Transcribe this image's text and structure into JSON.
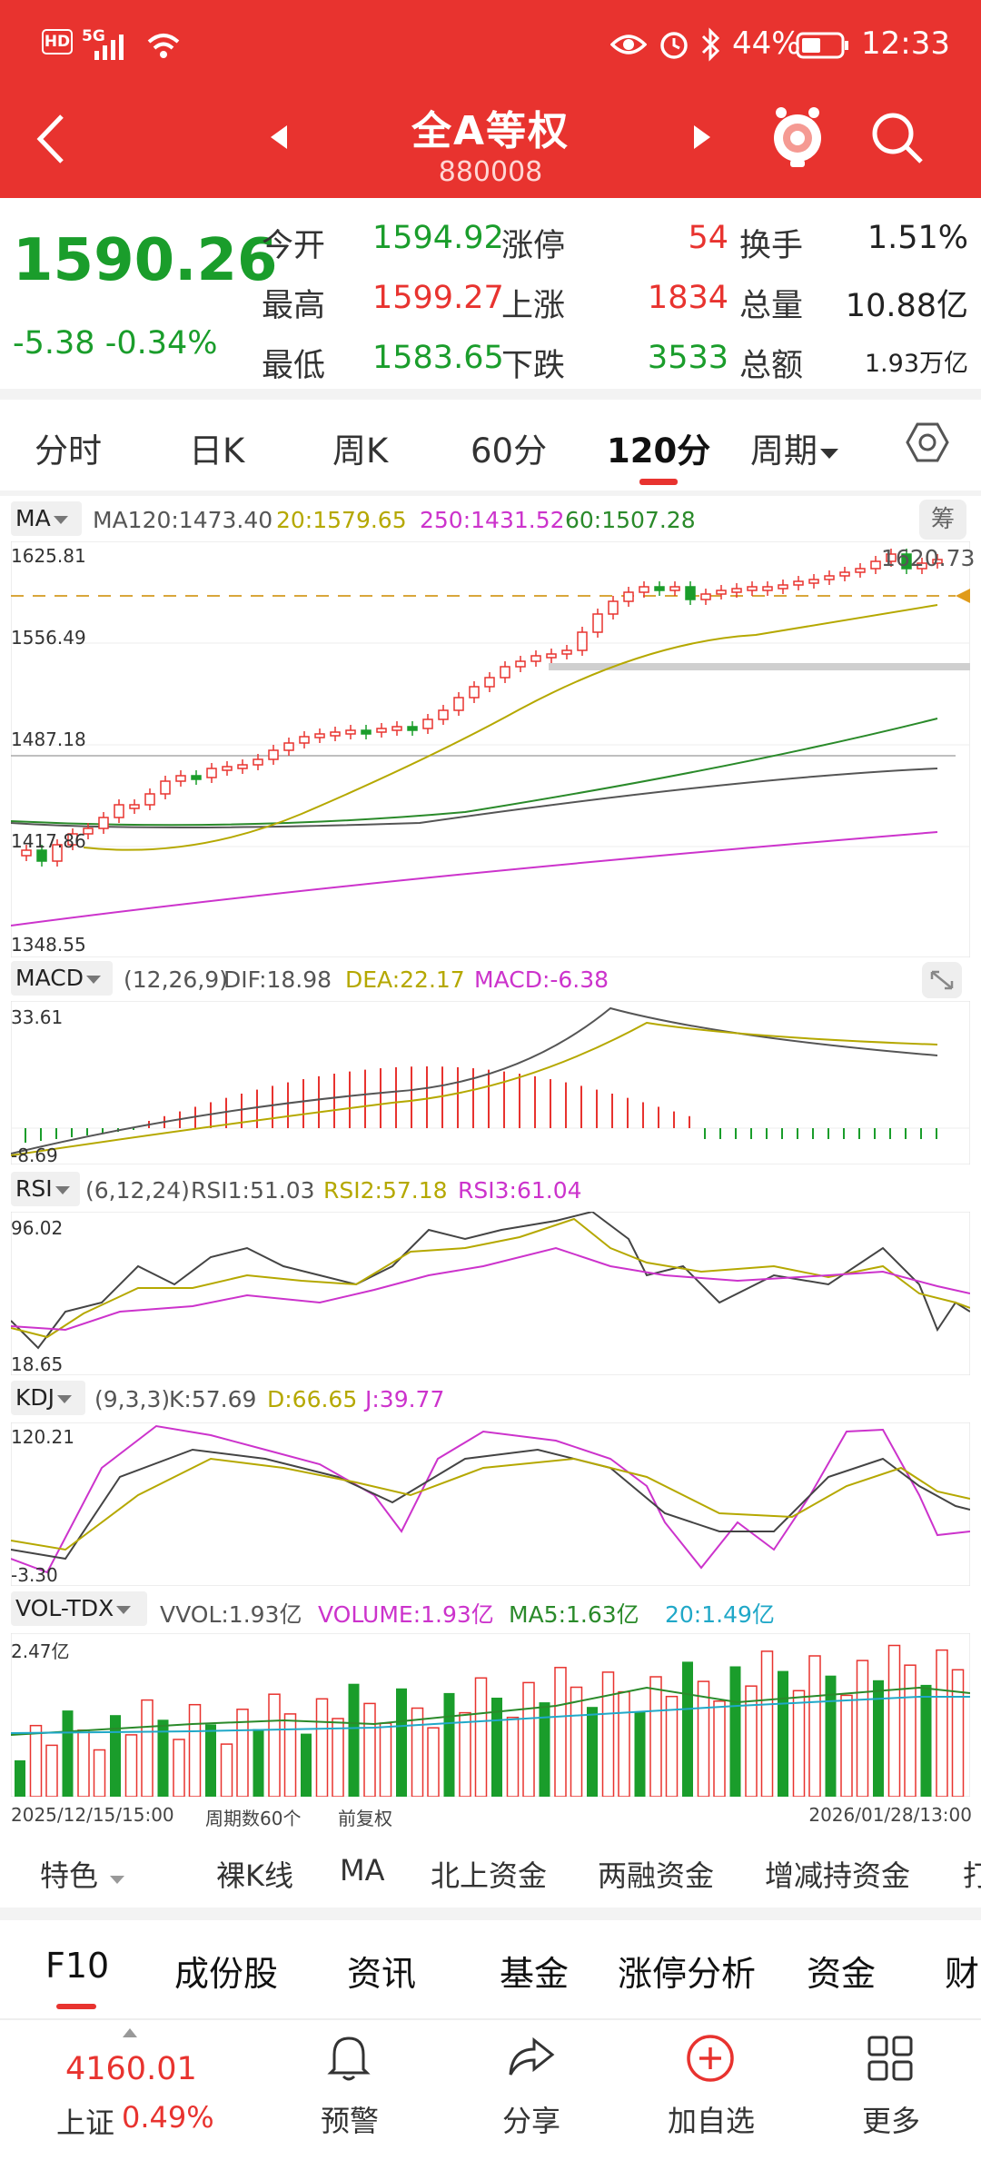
{
  "status": {
    "hd": "HD",
    "net": "5G",
    "battery": "44%",
    "time": "12:33"
  },
  "header": {
    "title": "全A等权",
    "code": "880008"
  },
  "quote": {
    "price": "1590.26",
    "change": "-5.38",
    "change_pct": "-0.34%",
    "rows": [
      {
        "l1": "今开",
        "v1": "1594.92",
        "l2": "涨停",
        "v2": "54",
        "l3": "换手",
        "v3": "1.51%"
      },
      {
        "l1": "最高",
        "v1": "1599.27",
        "l2": "上涨",
        "v2": "1834",
        "l3": "总量",
        "v3": "10.88亿"
      },
      {
        "l1": "最低",
        "v1": "1583.65",
        "l2": "下跌",
        "v2": "3533",
        "l3": "总额",
        "v3": "1.93万亿"
      }
    ]
  },
  "tabs": [
    "分时",
    "日K",
    "周K",
    "60分",
    "120分",
    "周期"
  ],
  "ma": {
    "name": "MA",
    "ma120": "MA120:1473.40",
    "ma20": "20:1579.65",
    "ma250": "250:1431.52",
    "ma60": "60:1507.28",
    "chip": "筹",
    "labels": [
      "1625.81",
      "1556.49",
      "1487.18",
      "1417.86",
      "1348.55"
    ],
    "high": "1620.73"
  },
  "macd": {
    "name": "MACD",
    "params": "(12,26,9)",
    "dif": "DIF:18.98",
    "dea": "DEA:22.17",
    "macd": "MACD:-6.38",
    "labels": [
      "33.61",
      "-8.69"
    ]
  },
  "rsi": {
    "name": "RSI",
    "params": "(6,12,24)",
    "r1": "RSI1:51.03",
    "r2": "RSI2:57.18",
    "r3": "RSI3:61.04",
    "labels": [
      "96.02",
      "18.65"
    ]
  },
  "kdj": {
    "name": "KDJ",
    "params": "(9,3,3)",
    "k": "K:57.69",
    "d": "D:66.65",
    "j": "J:39.77",
    "labels": [
      "120.21",
      "-3.30"
    ]
  },
  "vol": {
    "name": "VOL-TDX",
    "vvol": "VVOL:1.93亿",
    "volume": "VOLUME:1.93亿",
    "ma5": "MA5:1.63亿",
    "ma20": "20:1.49亿",
    "labels": [
      "2.47亿"
    ]
  },
  "footer_axis": {
    "start": "2025/12/15/15:00",
    "count": "周期数60个",
    "adj": "前复权",
    "end": "2026/01/28/13:00"
  },
  "features": [
    "特色",
    "裸K线",
    "MA",
    "北上资金",
    "两融资金",
    "增减持资金",
    "打"
  ],
  "f10": [
    "F10",
    "成份股",
    "资讯",
    "基金",
    "涨停分析",
    "资金",
    "财"
  ],
  "bottom": {
    "index_value": "4160.01",
    "index_name": "上证",
    "index_pct": "0.49%",
    "items": [
      "预警",
      "分享",
      "加自选",
      "更多"
    ]
  },
  "colors": {
    "red": "#e8332f",
    "green": "#1a9d2b",
    "olive": "#b5a800",
    "magenta": "#cc33cc"
  }
}
